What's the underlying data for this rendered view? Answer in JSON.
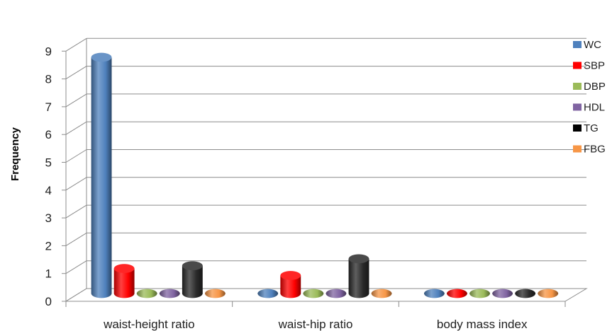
{
  "chart_data": {
    "type": "bar",
    "style": "3d-cylinder",
    "categories": [
      "waist-height ratio",
      "waist-hip ratio",
      "body mass index"
    ],
    "series": [
      {
        "name": "WC",
        "values": [
          8.5,
          0,
          0
        ],
        "color": "#4F81BD"
      },
      {
        "name": "SBP",
        "values": [
          0.9,
          0.65,
          0
        ],
        "color": "#FF0000"
      },
      {
        "name": "DBP",
        "values": [
          0,
          0,
          0
        ],
        "color": "#9BBB59"
      },
      {
        "name": "HDL",
        "values": [
          0,
          0,
          0
        ],
        "color": "#8064A2"
      },
      {
        "name": "TG",
        "values": [
          1.0,
          1.25,
          0
        ],
        "color": "#000000"
      },
      {
        "name": "FBG",
        "values": [
          0,
          0,
          0
        ],
        "color": "#F79646"
      }
    ],
    "title": "",
    "xlabel": "",
    "ylabel": "Frequency",
    "ylim": [
      0,
      9
    ],
    "yticks": [
      0,
      1,
      2,
      3,
      4,
      5,
      6,
      7,
      8,
      9
    ],
    "grid": true,
    "legend_position": "right"
  }
}
